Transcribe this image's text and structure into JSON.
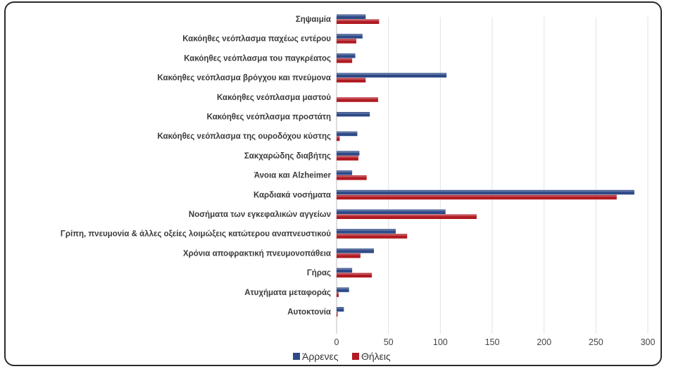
{
  "chart_data": {
    "type": "bar",
    "orientation": "horizontal",
    "categories": [
      "Σηψαιμία",
      "Κακόηθες νεόπλασμα παχέως εντέρου",
      "Κακόηθες νεόπλασμα του παγκρέατος",
      "Κακόηθες νεόπλασμα βρόγχου και πνεύμονα",
      "Κακόηθες νεόπλασμα μαστού",
      "Κακόηθες νεόπλασμα προστάτη",
      "Κακόηθες νεόπλασμα της ουροδόχου κύστης",
      "Σακχαρώδης διαβήτης",
      "Άνοια και Alzheimer",
      "Καρδιακά νοσήματα",
      "Νοσήματα των εγκεφαλικών αγγείων",
      "Γρίπη, πνευμονία & άλλες οξείες λοιμώξεις κατώτερου αναπνευστικού",
      "Χρόνια αποφρακτική πνευμονοπάθεια",
      "Γήρας",
      "Ατυχήματα μεταφοράς",
      "Αυτοκτονία"
    ],
    "series": [
      {
        "name": "Άρρενες",
        "color": "#2e4a87",
        "values": [
          28,
          25,
          18,
          106,
          0,
          32,
          20,
          22,
          15,
          287,
          105,
          57,
          36,
          15,
          12,
          7
        ]
      },
      {
        "name": "Θήλεις",
        "color": "#b01a22",
        "values": [
          41,
          19,
          15,
          28,
          40,
          0,
          3,
          21,
          29,
          270,
          135,
          68,
          23,
          34,
          2,
          1
        ]
      }
    ],
    "xlim": [
      0,
      300
    ],
    "xticks": [
      "0",
      "50",
      "100",
      "150",
      "200",
      "250",
      "300"
    ],
    "grid": true,
    "legend_position": "bottom"
  }
}
